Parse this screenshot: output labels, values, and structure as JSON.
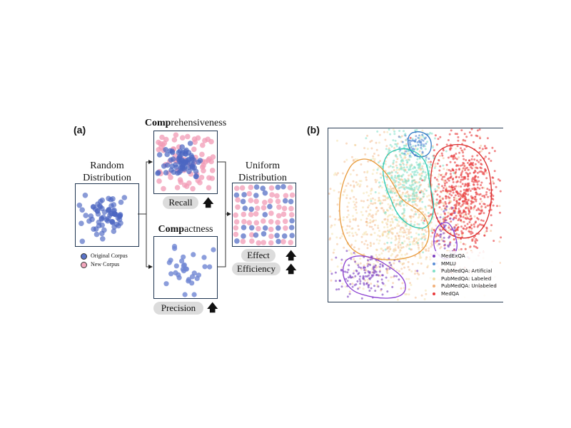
{
  "panel_a": {
    "label": "(a)",
    "random": {
      "title_line1": "Random",
      "title_line2": "Distribution"
    },
    "comprehensiveness": {
      "title_bold": "Comp",
      "title_rest": "rehensiveness",
      "metric": "Recall"
    },
    "compactness": {
      "title_bold": "Comp",
      "title_rest": "actness",
      "metric": "Precision"
    },
    "uniform": {
      "title_line1": "Uniform",
      "title_line2": "Distribution",
      "metrics": [
        "Effect",
        "Efficiency"
      ]
    },
    "legend": [
      {
        "label": "Original Corpus",
        "color": "#5b74c8"
      },
      {
        "label": "New Corpus",
        "color": "#f2a7bd"
      }
    ],
    "colors": {
      "original": "#4c66c2",
      "new": "#f29bb5",
      "border": "#1f3550"
    }
  },
  "panel_b": {
    "label": "(b)",
    "legend": [
      {
        "label": "MedExQA",
        "color": "#7b3fbf"
      },
      {
        "label": "MMLU",
        "color": "#5b8ed6"
      },
      {
        "label": "PubMedQA: Artificial",
        "color": "#7fe0c8"
      },
      {
        "label": "PubMedQA: Labeled",
        "color": "#f4dfa6"
      },
      {
        "label": "PubMedQA: Unlabeled",
        "color": "#f2b07a"
      },
      {
        "label": "MedQA",
        "color": "#e8393b"
      }
    ],
    "cluster_outline_colors": [
      "#2f78c4",
      "#d92b2b",
      "#2fc9b3",
      "#e89a3c",
      "#8a3fd1",
      "#8a3fd1"
    ]
  }
}
